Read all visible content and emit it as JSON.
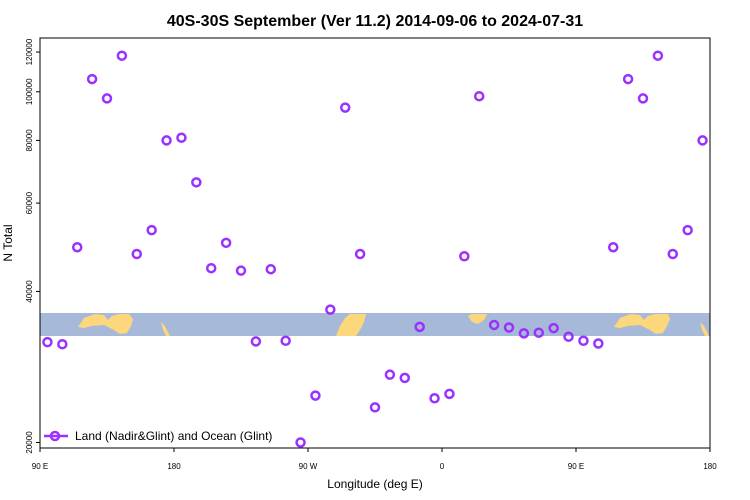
{
  "chart_data": {
    "type": "scatter",
    "title": "40S-30S September (Ver 11.2)   2014-09-06 to 2024-07-31",
    "xlabel": "Longitude (deg E)",
    "ylabel": "N Total",
    "y_scale": "log",
    "xlim": [
      90,
      315
    ],
    "ylim": [
      19500,
      128000
    ],
    "x_ticks": [
      {
        "value": 90,
        "label": "90 E"
      },
      {
        "value": 135,
        "label": "180"
      },
      {
        "value": 180,
        "label": "90 W"
      },
      {
        "value": 225,
        "label": "0"
      },
      {
        "value": 270,
        "label": "90 E"
      },
      {
        "value": 315,
        "label": "180"
      }
    ],
    "y_ticks": [
      {
        "value": 20000,
        "label": "20000"
      },
      {
        "value": 40000,
        "label": "40000"
      },
      {
        "value": 60000,
        "label": "60000"
      },
      {
        "value": 80000,
        "label": "80000"
      },
      {
        "value": 100000,
        "label": "100000"
      },
      {
        "value": 120000,
        "label": "120000"
      }
    ],
    "series": [
      {
        "name": "Land (Nadir&Glint) and Ocean (Glint)",
        "color": "#9b30ff",
        "marker": "open-circle",
        "points": [
          [
            92.5,
            31700
          ],
          [
            97.5,
            31400
          ],
          [
            102.5,
            49000
          ],
          [
            107.5,
            106000
          ],
          [
            112.5,
            97000
          ],
          [
            117.5,
            118000
          ],
          [
            122.5,
            47500
          ],
          [
            127.5,
            53000
          ],
          [
            132.5,
            80000
          ],
          [
            137.5,
            81000
          ],
          [
            142.5,
            66000
          ],
          [
            147.5,
            44500
          ],
          [
            152.5,
            50000
          ],
          [
            157.5,
            44000
          ],
          [
            162.5,
            31800
          ],
          [
            167.5,
            44300
          ],
          [
            172.5,
            31900
          ],
          [
            177.5,
            20000
          ],
          [
            182.5,
            24800
          ],
          [
            187.5,
            36800
          ],
          [
            192.5,
            93000
          ],
          [
            197.5,
            47500
          ],
          [
            202.5,
            23500
          ],
          [
            207.5,
            27300
          ],
          [
            212.5,
            26900
          ],
          [
            217.5,
            34000
          ],
          [
            222.5,
            24500
          ],
          [
            227.5,
            25000
          ],
          [
            232.5,
            47000
          ],
          [
            237.5,
            98000
          ],
          [
            242.5,
            34300
          ],
          [
            247.5,
            33900
          ],
          [
            252.5,
            33000
          ],
          [
            257.5,
            33100
          ],
          [
            262.5,
            33800
          ],
          [
            267.5,
            32500
          ],
          [
            272.5,
            31900
          ],
          [
            277.5,
            31500
          ],
          [
            282.5,
            49000
          ],
          [
            287.5,
            106000
          ],
          [
            292.5,
            97000
          ],
          [
            297.5,
            118000
          ],
          [
            302.5,
            47500
          ],
          [
            307.5,
            53000
          ],
          [
            312.5,
            80000
          ]
        ]
      }
    ],
    "legend_position": "bottom-left",
    "map_strip": {
      "ocean_color": "#a7b9d9",
      "land_color": "#fcd77b"
    }
  }
}
